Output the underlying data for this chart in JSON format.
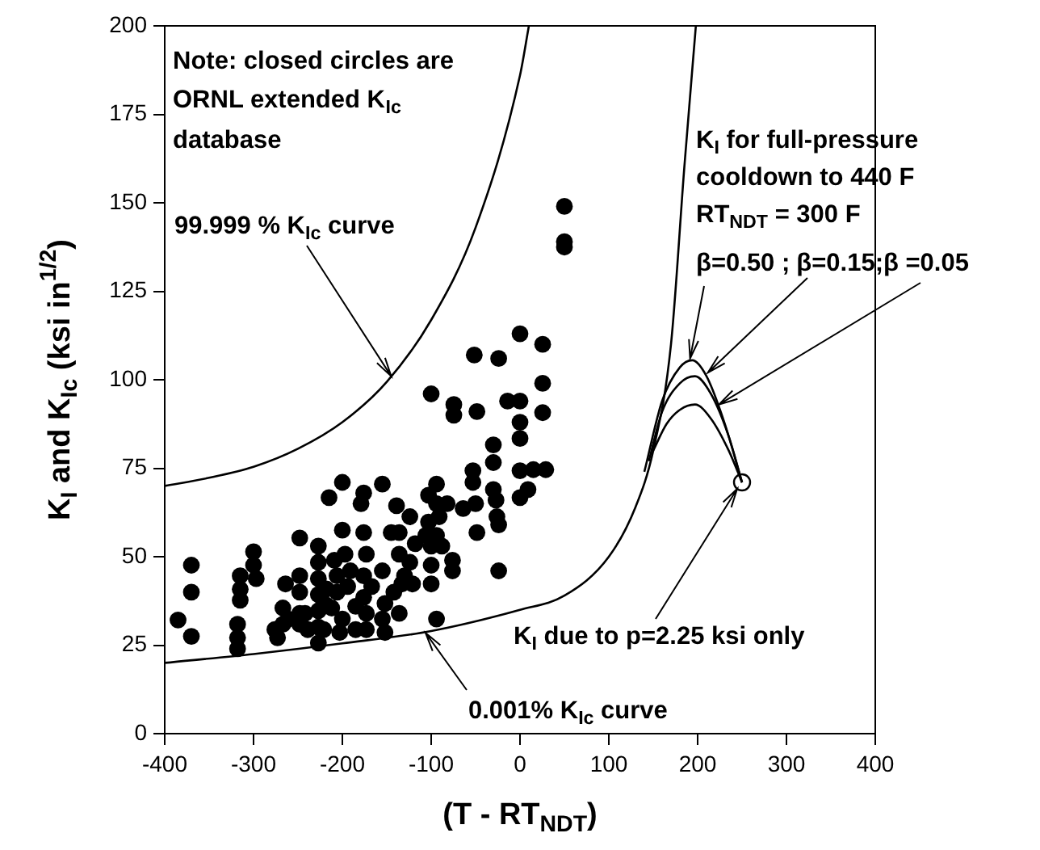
{
  "chart_data": {
    "type": "scatter",
    "xlabel": "(T - RT$_{NDT}$)",
    "ylabel": "K$_{I}$ and K$_{Ic}$ (ksi in$^{1/2}$)",
    "xlim": [
      -400,
      400
    ],
    "xticks": [
      -400,
      -300,
      -200,
      -100,
      0,
      100,
      200,
      300,
      400
    ],
    "ylim": [
      0,
      200
    ],
    "yticks": [
      0,
      25,
      50,
      75,
      100,
      125,
      150,
      175,
      200
    ],
    "grid": false,
    "legend": false,
    "marker": "circle",
    "series": [
      {
        "type": "scatter",
        "color": "#000000",
        "x": [
          50,
          50,
          50,
          0,
          25.5,
          -51.5,
          -24,
          25.5,
          -100,
          -74.5,
          -74.5,
          -48.5,
          -14,
          0,
          0,
          25.5,
          0,
          -30,
          -30,
          -53,
          -53,
          0,
          15,
          29,
          0,
          9,
          -30,
          -27,
          -26,
          -24,
          -48.5,
          -64,
          -50,
          -24,
          -94,
          -103,
          -82,
          -91,
          -103,
          -94,
          -88,
          -76,
          -76,
          -100,
          -100,
          -100,
          -94,
          -124,
          -139,
          -155,
          -176,
          -179,
          -200,
          -215,
          -200,
          -145,
          -136,
          -124,
          -130,
          -142,
          -136,
          -155,
          -152,
          -176,
          -173,
          -176,
          -176,
          -173,
          -173,
          -167,
          -191,
          -194,
          -197,
          -209,
          -206,
          -206,
          -212,
          -200,
          -227,
          -227,
          -227,
          -227,
          -227,
          -227,
          -227,
          -218,
          -218,
          -248,
          -248,
          -248,
          -248,
          -248,
          -264,
          -267,
          -261,
          -276,
          -273,
          -300,
          -300,
          -315,
          -297,
          -315,
          -315,
          -318,
          -318,
          -318,
          -370,
          -370,
          -385,
          -370,
          -94,
          -106,
          -118,
          -136,
          -155,
          -133,
          -121,
          -152,
          -185,
          -185,
          -203,
          -242,
          -267,
          -239,
          -221
        ],
        "values": [
          149,
          139,
          137.5,
          113,
          110,
          107,
          106,
          99,
          96,
          93,
          90,
          91,
          94,
          94,
          88,
          90.7,
          83.4,
          81.6,
          76.6,
          74.3,
          71,
          74.3,
          74.6,
          74.6,
          66.7,
          69,
          69,
          66,
          61.3,
          59,
          56.8,
          63.6,
          65,
          46,
          70.5,
          67.4,
          65,
          61.3,
          59.8,
          56,
          53,
          49,
          46,
          53,
          47.6,
          42.3,
          32.4,
          61.3,
          64.4,
          70.5,
          68,
          65,
          71,
          66.7,
          57.5,
          56.8,
          56.8,
          48.4,
          44.6,
          40,
          34,
          32.4,
          28.6,
          56.8,
          50.7,
          44.6,
          38.5,
          34,
          29.4,
          41.6,
          46,
          41.6,
          50.7,
          49,
          44.6,
          40,
          35.5,
          32.4,
          53,
          48.4,
          43.8,
          39.3,
          34.7,
          30.1,
          25.6,
          40.9,
          36.3,
          55.3,
          44.6,
          40,
          34,
          30.9,
          42.3,
          35.5,
          32.4,
          29.4,
          27.1,
          51.4,
          47.6,
          44.6,
          43.8,
          40.8,
          37.7,
          30.9,
          27.1,
          24,
          47.6,
          40,
          32.1,
          27.5,
          65,
          56,
          53.7,
          50.7,
          46,
          42.3,
          42.3,
          36.8,
          36,
          29.4,
          28.6,
          34,
          30.9,
          29.4,
          29.4
        ]
      },
      {
        "type": "line",
        "color": "#000000",
        "marker": "none",
        "line_style": "solid",
        "x": [
          -400,
          -350,
          -300,
          -250,
          -200,
          -150,
          -100,
          -50,
          0,
          10
        ],
        "values": [
          70,
          72.3,
          75.4,
          80.5,
          88,
          99.4,
          116.9,
          143,
          186,
          200
        ]
      },
      {
        "type": "line",
        "color": "#000000",
        "marker": "none",
        "line_style": "solid",
        "x": [
          -400,
          -300,
          -200,
          -100,
          0,
          50,
          100,
          130,
          150,
          170,
          185,
          198
        ],
        "values": [
          20,
          22.5,
          25.5,
          29,
          35,
          39,
          50,
          64,
          80,
          110,
          160,
          200
        ]
      },
      {
        "type": "line",
        "color": "#000000",
        "marker": "none",
        "line_style": "solid",
        "x": [
          140,
          160,
          180,
          194,
          210,
          230,
          250
        ],
        "values": [
          74,
          94,
          103.5,
          105.5,
          101,
          88,
          71
        ]
      },
      {
        "type": "line",
        "color": "#000000",
        "marker": "none",
        "line_style": "solid",
        "x": [
          145,
          160,
          180,
          197,
          215,
          235,
          250
        ],
        "values": [
          77,
          91,
          99,
          101,
          96,
          84,
          71
        ]
      },
      {
        "type": "line",
        "color": "#000000",
        "marker": "none",
        "line_style": "solid",
        "x": [
          150,
          165,
          180,
          197,
          215,
          235,
          250
        ],
        "values": [
          80,
          87.5,
          91.5,
          93,
          89,
          80,
          71
        ]
      },
      {
        "type": "line",
        "color": "#000000",
        "marker": "circle",
        "x": [
          250
        ],
        "values": [
          71
        ]
      }
    ],
    "annotations": [
      "Note: closed circles are",
      "ORNL extended K$_{Ic}$",
      "database",
      {
        "text": "99.999 % K$_{Ic}$ curve",
        "x": -145,
        "y": 101
      },
      "K$_{I}$ for full-pressure",
      "cooldown to 440 F",
      "RT$_{NDT}$ = 300 F",
      {
        "text": "β=0.50 ;",
        "x": 191.5,
        "y": 106
      },
      {
        "text": "β=0.15;",
        "x": 211.5,
        "y": 102
      },
      {
        "text": "β =0.05",
        "x": 224,
        "y": 93
      },
      {
        "text": "K$_{I}$ due to p=2.25 ksi only",
        "x": 250,
        "y": 71
      },
      {
        "text": "0.001% K$_{Ic}$ curve",
        "x": -110,
        "y": 28.5
      }
    ]
  }
}
